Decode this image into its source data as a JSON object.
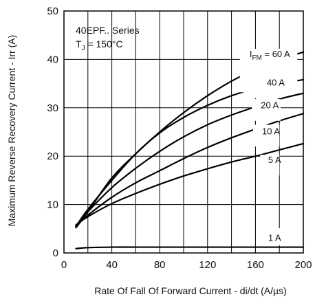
{
  "chart_data": {
    "type": "line",
    "xlabel": "Rate Of Fall Of Forward Current - di/dt (A/µs)",
    "ylabel": "Maximum Reverse Recovery Current - Irr (A)",
    "xlim": [
      0,
      200
    ],
    "ylim": [
      0,
      50
    ],
    "xticks": [
      0,
      40,
      80,
      120,
      160,
      200
    ],
    "yticks": [
      0,
      10,
      20,
      30,
      40,
      50
    ],
    "grid": true,
    "annotation": {
      "series_text": "40EPF.. Series",
      "temp_prefix": "T",
      "temp_sub": "J",
      "temp_value": " = 150°C"
    },
    "series": [
      {
        "name": "I FM = 60 A",
        "label_main": "I",
        "label_sub": "FM",
        "label_rest": " = 60 A",
        "x": [
          10,
          20,
          40,
          60,
          80,
          100,
          120,
          140,
          160,
          180,
          200
        ],
        "y": [
          5.2,
          8.5,
          15.5,
          20.5,
          25,
          29,
          32.5,
          35.5,
          38,
          40,
          41.5
        ]
      },
      {
        "name": "40 A",
        "label": "40 A",
        "x": [
          10,
          20,
          40,
          60,
          80,
          100,
          120,
          140,
          160,
          180,
          200
        ],
        "y": [
          5.5,
          9,
          15,
          20.5,
          24.8,
          28,
          30.5,
          32.5,
          34,
          35,
          35.8
        ]
      },
      {
        "name": "20 A",
        "label": "20 A",
        "x": [
          10,
          20,
          40,
          60,
          80,
          100,
          120,
          140,
          160,
          180,
          200
        ],
        "y": [
          5.5,
          8.5,
          13.5,
          17.5,
          21,
          24,
          26.5,
          28.5,
          30.2,
          31.8,
          33
        ]
      },
      {
        "name": "10 A",
        "label": "10 A",
        "x": [
          10,
          20,
          40,
          60,
          80,
          100,
          120,
          140,
          160,
          180,
          200
        ],
        "y": [
          5.5,
          7.8,
          11.5,
          14.5,
          17,
          19.5,
          21.8,
          23.8,
          25.6,
          27.3,
          28.8
        ]
      },
      {
        "name": "5 A",
        "label": "5 A",
        "x": [
          10,
          20,
          40,
          60,
          80,
          100,
          120,
          140,
          160,
          180,
          200
        ],
        "y": [
          5.8,
          7.5,
          10.2,
          12.3,
          14.2,
          15.9,
          17.4,
          18.8,
          20,
          21.3,
          22.6
        ]
      },
      {
        "name": "1 A",
        "label": "1 A",
        "x": [
          10,
          20,
          40,
          60,
          80,
          100,
          120,
          140,
          160,
          180,
          200
        ],
        "y": [
          0.9,
          1.1,
          1.2,
          1.2,
          1.2,
          1.2,
          1.2,
          1.2,
          1.2,
          1.2,
          1.2
        ]
      }
    ]
  }
}
